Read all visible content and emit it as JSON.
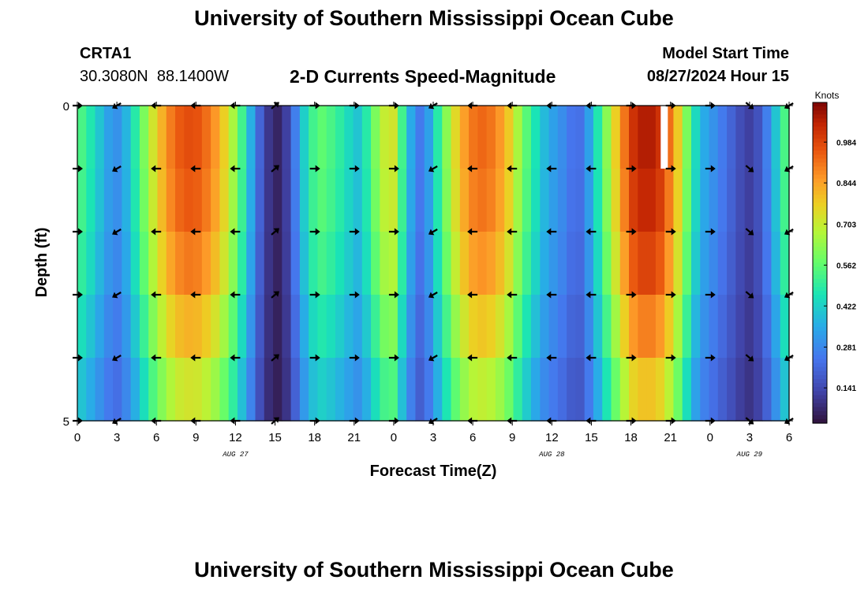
{
  "page": {
    "title": "University of Southern Mississippi Ocean Cube",
    "station_id": "CRTA1",
    "coords": "30.3080N  88.1400W",
    "model_start_label": "Model Start Time",
    "model_start_value": "08/27/2024 Hour 15",
    "footer_title": "University of Southern Mississippi Ocean Cube"
  },
  "chart_data": {
    "type": "heatmap",
    "title": "2-D Currents Speed-Magnitude",
    "xlabel": "Forecast Time(Z)",
    "ylabel": "Depth (ft)",
    "x_tick_labels": [
      "0",
      "3",
      "6",
      "9",
      "12",
      "15",
      "18",
      "21",
      "0",
      "3",
      "6",
      "9",
      "12",
      "15",
      "18",
      "21",
      "0",
      "3",
      "6"
    ],
    "date_labels": [
      {
        "label": "AUG 27",
        "hour_index": 12
      },
      {
        "label": "AUG 28",
        "hour_index": 36
      },
      {
        "label": "AUG 29",
        "hour_index": 51
      }
    ],
    "hours": 54,
    "y_ticks": [
      "0",
      "5"
    ],
    "ylim": [
      0,
      5
    ],
    "depth_levels": 5,
    "colorbar": {
      "label": "Knots",
      "ticks": [
        "0.984",
        "0.844",
        "0.703",
        "0.562",
        "0.422",
        "0.281",
        "0.141"
      ],
      "range": [
        0.02,
        1.12
      ]
    },
    "speed_profile_knots": [
      0.53,
      0.47,
      0.4,
      0.33,
      0.3,
      0.37,
      0.48,
      0.6,
      0.72,
      0.82,
      0.9,
      0.95,
      0.97,
      0.96,
      0.92,
      0.86,
      0.77,
      0.66,
      0.52,
      0.36,
      0.2,
      0.1,
      0.06,
      0.12,
      0.26,
      0.42,
      0.52,
      0.56,
      0.53,
      0.49,
      0.44,
      0.4,
      0.48,
      0.6,
      0.7,
      0.72,
      0.52,
      0.35,
      0.25,
      0.33,
      0.48,
      0.62,
      0.75,
      0.85,
      0.91,
      0.93,
      0.91,
      0.86,
      0.78,
      0.66,
      0.55,
      0.46,
      0.38,
      0.33,
      0.29,
      0.24,
      0.23,
      0.33,
      0.47,
      0.62,
      0.77,
      0.91,
      1.02,
      1.06,
      1.06,
      1.02,
      0.92,
      0.78,
      0.6,
      0.44,
      0.35,
      0.3,
      0.25,
      0.2,
      0.15,
      0.12,
      0.16,
      0.26,
      0.4,
      0.53
    ],
    "depth_factor": [
      1.0,
      0.98,
      0.93,
      0.84,
      0.74,
      0.6
    ],
    "vector_columns": [
      {
        "hour": 0,
        "dir": "E"
      },
      {
        "hour": 3,
        "dir": "SW"
      },
      {
        "hour": 6,
        "dir": "W"
      },
      {
        "hour": 9,
        "dir": "W"
      },
      {
        "hour": 12,
        "dir": "W"
      },
      {
        "hour": 15,
        "dir": "NE"
      },
      {
        "hour": 18,
        "dir": "E"
      },
      {
        "hour": 21,
        "dir": "E"
      },
      {
        "hour": 24,
        "dir": "E"
      },
      {
        "hour": 27,
        "dir": "SW"
      },
      {
        "hour": 30,
        "dir": "W"
      },
      {
        "hour": 33,
        "dir": "W"
      },
      {
        "hour": 36,
        "dir": "W"
      },
      {
        "hour": 39,
        "dir": "W"
      },
      {
        "hour": 42,
        "dir": "E"
      },
      {
        "hour": 45,
        "dir": "E"
      },
      {
        "hour": 48,
        "dir": "E"
      },
      {
        "hour": 51,
        "dir": "SE"
      },
      {
        "hour": 54,
        "dir": "SW"
      }
    ],
    "missing_cells": [
      {
        "hour": 44.5,
        "depth_row": 0
      }
    ]
  }
}
